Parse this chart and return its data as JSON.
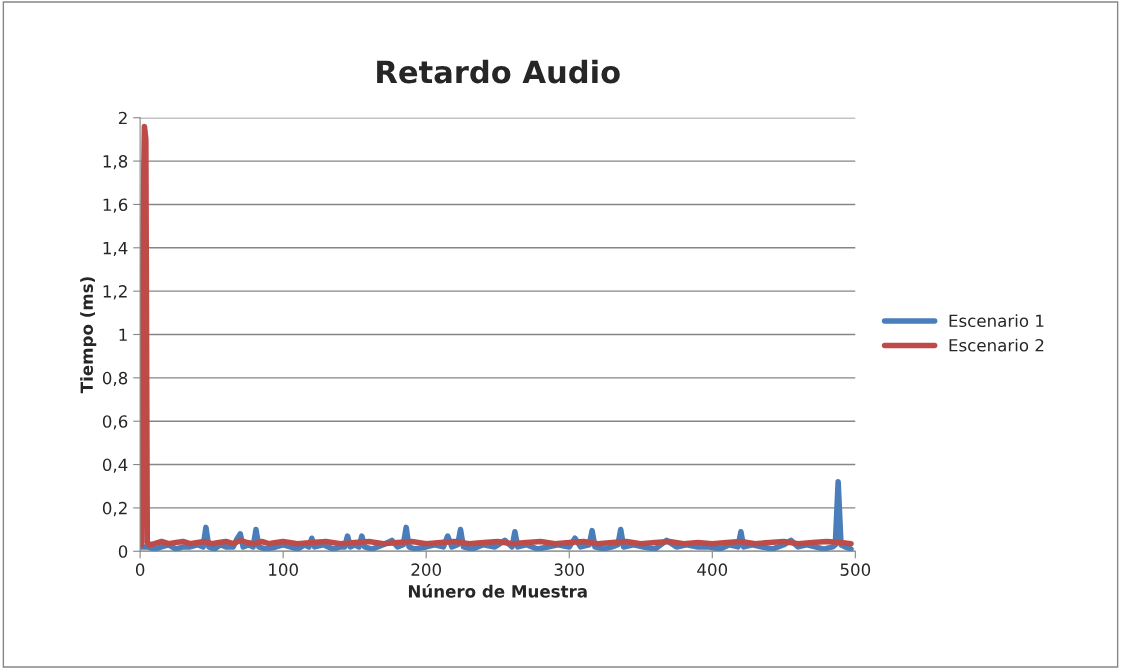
{
  "chart_data": {
    "type": "line",
    "title": "Retardo Audio",
    "xlabel": "Núnero de Muestra",
    "ylabel": "Tiempo (ms)",
    "xlim": [
      0,
      500
    ],
    "xticks": [
      0,
      100,
      200,
      300,
      400,
      500
    ],
    "ylim": [
      0,
      2
    ],
    "yticks": [
      0,
      {
        "value": 0.2,
        "label": "0,2"
      },
      {
        "value": 0.4,
        "label": "0,4"
      },
      {
        "value": 0.6,
        "label": "0,6"
      },
      {
        "value": 0.8,
        "label": "0,8"
      },
      1,
      {
        "value": 1.2,
        "label": "1,2"
      },
      {
        "value": 1.4,
        "label": "1,4"
      },
      {
        "value": 1.6,
        "label": "1,6"
      },
      {
        "value": 1.8,
        "label": "1,8"
      },
      2
    ],
    "grid": "y",
    "legend": "right",
    "marker": "none",
    "line_style": "solid",
    "series": [
      {
        "name": "Escenario 1",
        "color": "#4a7ebb",
        "x": [
          1,
          5,
          10,
          15,
          20,
          25,
          30,
          35,
          40,
          44,
          46,
          48,
          52,
          56,
          60,
          65,
          68,
          70,
          72,
          76,
          79,
          81,
          83,
          88,
          95,
          100,
          105,
          110,
          115,
          118,
          120,
          122,
          128,
          135,
          140,
          143,
          145,
          147,
          150,
          153,
          155,
          157,
          162,
          170,
          176,
          180,
          184,
          186,
          188,
          192,
          200,
          206,
          212,
          215,
          218,
          222,
          224,
          226,
          232,
          240,
          248,
          255,
          260,
          262,
          264,
          270,
          278,
          285,
          292,
          300,
          304,
          308,
          314,
          316,
          318,
          324,
          330,
          334,
          336,
          338,
          345,
          352,
          360,
          368,
          375,
          382,
          390,
          398,
          405,
          412,
          418,
          420,
          422,
          428,
          435,
          442,
          450,
          455,
          460,
          466,
          472,
          478,
          484,
          486,
          488,
          490,
          493,
          497
        ],
        "values": [
          0.02,
          0.02,
          0.01,
          0.02,
          0.03,
          0.01,
          0.02,
          0.02,
          0.03,
          0.02,
          0.11,
          0.02,
          0.01,
          0.03,
          0.02,
          0.02,
          0.06,
          0.08,
          0.02,
          0.03,
          0.02,
          0.1,
          0.02,
          0.01,
          0.02,
          0.03,
          0.02,
          0.01,
          0.03,
          0.02,
          0.06,
          0.02,
          0.03,
          0.01,
          0.02,
          0.02,
          0.07,
          0.02,
          0.03,
          0.02,
          0.07,
          0.02,
          0.01,
          0.03,
          0.05,
          0.02,
          0.03,
          0.11,
          0.02,
          0.01,
          0.02,
          0.03,
          0.02,
          0.07,
          0.02,
          0.03,
          0.1,
          0.02,
          0.01,
          0.03,
          0.02,
          0.05,
          0.02,
          0.09,
          0.02,
          0.03,
          0.01,
          0.02,
          0.03,
          0.02,
          0.06,
          0.02,
          0.03,
          0.095,
          0.02,
          0.01,
          0.02,
          0.03,
          0.1,
          0.02,
          0.03,
          0.02,
          0.01,
          0.05,
          0.02,
          0.03,
          0.02,
          0.02,
          0.01,
          0.03,
          0.02,
          0.09,
          0.02,
          0.03,
          0.02,
          0.01,
          0.03,
          0.05,
          0.02,
          0.03,
          0.02,
          0.01,
          0.02,
          0.03,
          0.32,
          0.03,
          0.02,
          0.01
        ]
      },
      {
        "name": "Escenario 2",
        "color": "#be4b48",
        "x": [
          1,
          2,
          3,
          4,
          5,
          6,
          10,
          15,
          20,
          25,
          30,
          35,
          40,
          45,
          50,
          55,
          60,
          65,
          70,
          75,
          80,
          85,
          90,
          95,
          100,
          110,
          120,
          130,
          140,
          150,
          160,
          170,
          180,
          190,
          200,
          210,
          220,
          230,
          240,
          250,
          260,
          270,
          280,
          290,
          300,
          310,
          320,
          330,
          340,
          350,
          360,
          370,
          380,
          390,
          400,
          410,
          420,
          430,
          440,
          450,
          460,
          470,
          480,
          490,
          497
        ],
        "values": [
          0.03,
          1.5,
          1.96,
          1.9,
          0.04,
          0.03,
          0.035,
          0.045,
          0.035,
          0.04,
          0.045,
          0.035,
          0.04,
          0.045,
          0.035,
          0.04,
          0.045,
          0.035,
          0.05,
          0.04,
          0.035,
          0.045,
          0.035,
          0.04,
          0.045,
          0.035,
          0.04,
          0.045,
          0.035,
          0.04,
          0.045,
          0.035,
          0.04,
          0.045,
          0.035,
          0.04,
          0.045,
          0.035,
          0.04,
          0.045,
          0.035,
          0.04,
          0.045,
          0.035,
          0.04,
          0.045,
          0.035,
          0.04,
          0.045,
          0.035,
          0.04,
          0.045,
          0.035,
          0.04,
          0.035,
          0.04,
          0.045,
          0.035,
          0.04,
          0.045,
          0.035,
          0.04,
          0.045,
          0.04,
          0.035
        ]
      }
    ]
  }
}
